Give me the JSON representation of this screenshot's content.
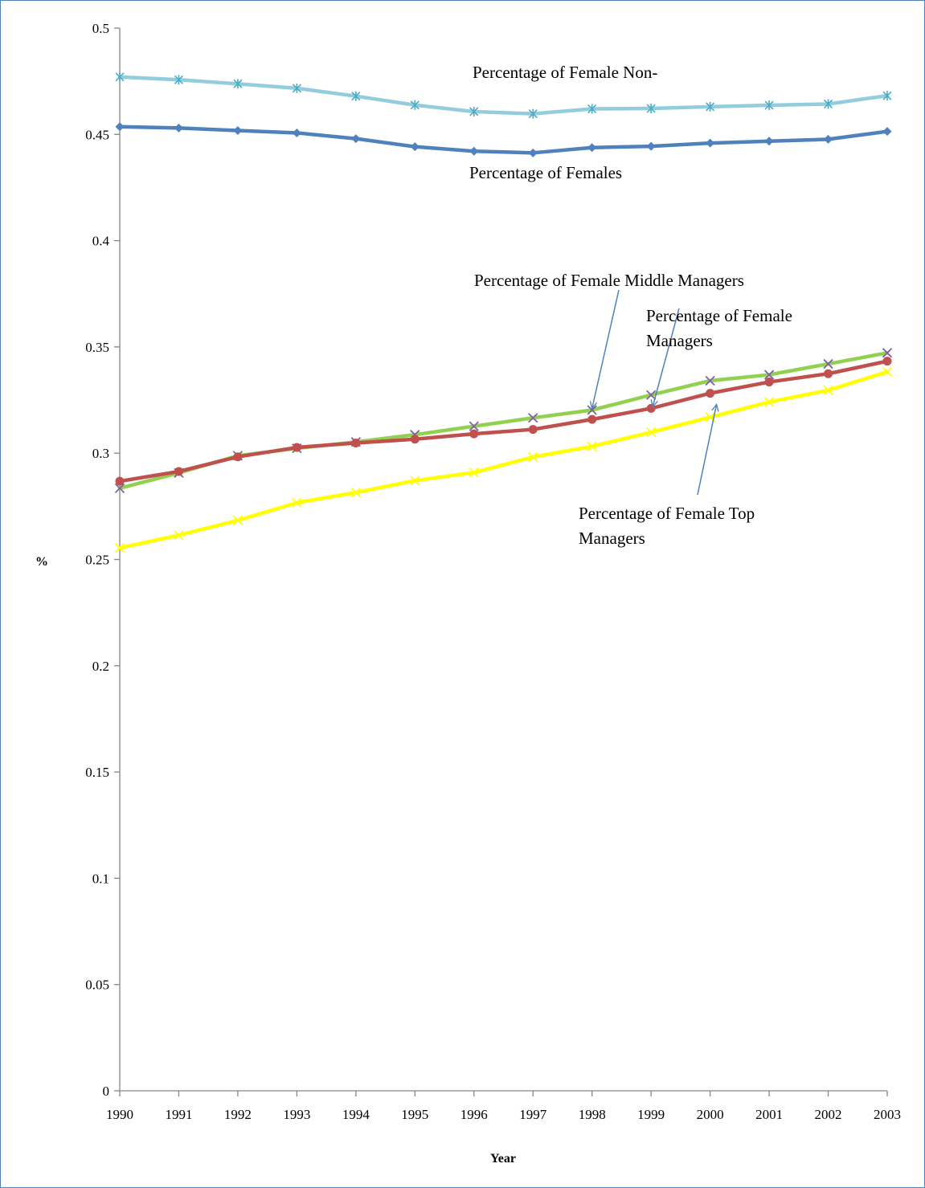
{
  "chart_data": {
    "type": "line",
    "xlabel": "Year",
    "ylabel": "%",
    "ylim": [
      0,
      0.5
    ],
    "y_ticks": [
      "0",
      "0.05",
      "0.1",
      "0.15",
      "0.2",
      "0.25",
      "0.3",
      "0.35",
      "0.4",
      "0.45",
      "0.5"
    ],
    "categories": [
      "1990",
      "1991",
      "1992",
      "1993",
      "1994",
      "1995",
      "1996",
      "1997",
      "1998",
      "1999",
      "2000",
      "2001",
      "2002",
      "2003"
    ],
    "grid": false,
    "legend": "none",
    "series": [
      {
        "name": "Percentage of Female Non-",
        "color": "#93cddd",
        "marker": "asterisk",
        "values": [
          0.477,
          0.4757,
          0.4738,
          0.4717,
          0.468,
          0.4638,
          0.4607,
          0.4597,
          0.462,
          0.4622,
          0.463,
          0.4637,
          0.4643,
          0.4682
        ]
      },
      {
        "name": "Percentage of Females",
        "color": "#4f81bd",
        "marker": "diamond",
        "values": [
          0.4536,
          0.453,
          0.4518,
          0.4507,
          0.448,
          0.4442,
          0.4421,
          0.4413,
          0.4438,
          0.4444,
          0.4459,
          0.4468,
          0.4477,
          0.4514
        ]
      },
      {
        "name": "Percentage of Female Middle Managers",
        "color": "#92d050",
        "marker": "x",
        "values": [
          0.2835,
          0.2907,
          0.2988,
          0.3023,
          0.3053,
          0.3087,
          0.3127,
          0.3166,
          0.3203,
          0.3274,
          0.3341,
          0.3369,
          0.342,
          0.3472
        ]
      },
      {
        "name": "Percentage of Female Managers",
        "color": "#c0504d",
        "marker": "circle",
        "values": [
          0.2868,
          0.2914,
          0.2983,
          0.3027,
          0.3048,
          0.3066,
          0.3091,
          0.3112,
          0.3159,
          0.3211,
          0.3282,
          0.3335,
          0.3374,
          0.3433
        ]
      },
      {
        "name": "Percentage of Female  Top Managers",
        "color": "#ffff00",
        "marker": "x",
        "values": [
          0.2554,
          0.2614,
          0.2684,
          0.2767,
          0.2815,
          0.2871,
          0.2909,
          0.2982,
          0.3032,
          0.3099,
          0.3169,
          0.3241,
          0.3296,
          0.3383
        ]
      }
    ],
    "annotations": [
      {
        "text": "Percentage of Female Non-"
      },
      {
        "text": "Percentage of Females"
      },
      {
        "text": "Percentage of Female  Middle Managers"
      },
      {
        "lines": [
          "Percentage of Female",
          "Managers"
        ]
      },
      {
        "lines": [
          "Percentage of Female  Top",
          "Managers"
        ]
      }
    ]
  }
}
